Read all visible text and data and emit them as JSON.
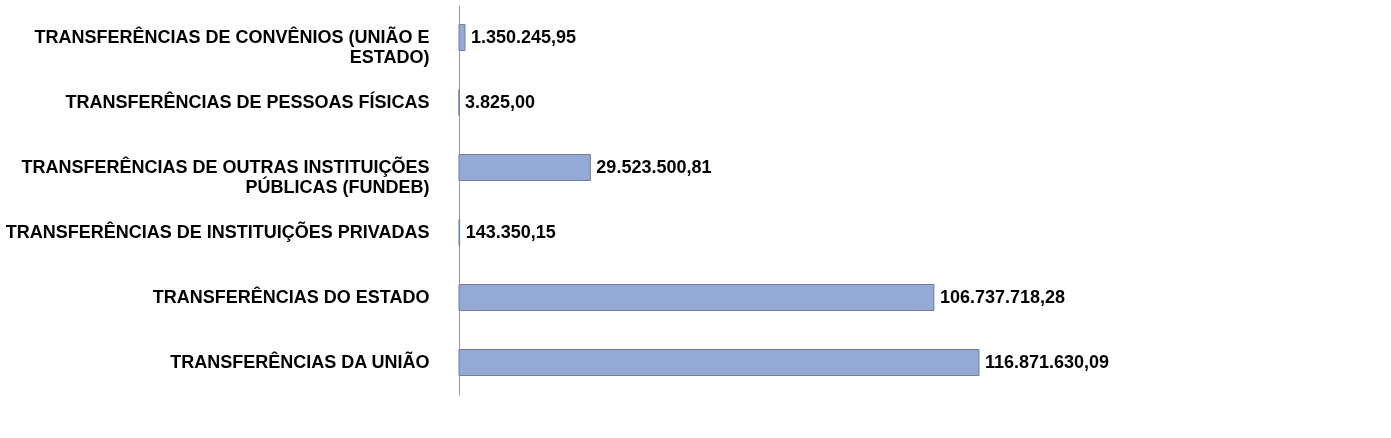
{
  "chart_data": {
    "type": "bar",
    "orientation": "horizontal",
    "categories": [
      "TRANSFERÊNCIAS DE CONVÊNIOS (UNIÃO E ESTADO)",
      "TRANSFERÊNCIAS DE PESSOAS FÍSICAS",
      "TRANSFERÊNCIAS DE OUTRAS INSTITUIÇÕES PÚBLICAS (FUNDEB)",
      "TRANSFERÊNCIAS DE INSTITUIÇÕES PRIVADAS",
      "TRANSFERÊNCIAS DO ESTADO",
      "TRANSFERÊNCIAS DA UNIÃO"
    ],
    "values": [
      1350245.95,
      3825.0,
      29523500.81,
      143350.15,
      106737718.28,
      116871630.09
    ],
    "value_labels": [
      "1.350.245,95",
      "3.825,00",
      "29.523.500,81",
      "143.350,15",
      "106.737.718,28",
      "116.871.630,09"
    ],
    "color": "#95a9d6",
    "grid": false
  }
}
